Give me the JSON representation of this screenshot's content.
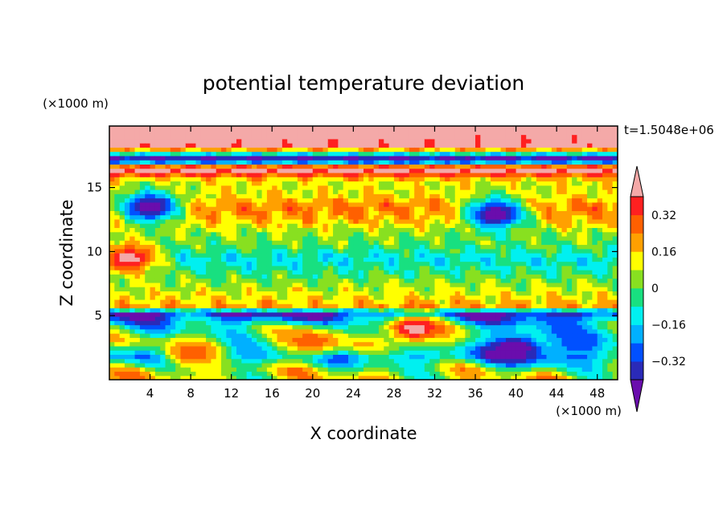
{
  "chart_data": {
    "type": "heatmap",
    "title": "potential temperature deviation",
    "xlabel": "X coordinate",
    "ylabel": "Z coordinate",
    "x_unit": "(×1000 m)",
    "y_unit": "(×1000 m)",
    "time_label": "t=1.5048e+06",
    "xlim": [
      0,
      50
    ],
    "ylim": [
      0,
      19.8
    ],
    "x_ticks": [
      4,
      8,
      12,
      16,
      20,
      24,
      28,
      32,
      36,
      40,
      44,
      48
    ],
    "y_ticks": [
      5,
      10,
      15
    ],
    "grid": false,
    "colorbar": {
      "placement": "right",
      "levels": [
        -0.4,
        -0.32,
        -0.24,
        -0.16,
        -0.08,
        0,
        0.08,
        0.16,
        0.24,
        0.32,
        0.4
      ],
      "labels": [
        "-0.32",
        "-0.16",
        "0",
        "0.16",
        "0.32"
      ],
      "label_values": [
        -0.32,
        -0.16,
        0,
        0.16,
        0.32
      ],
      "colors": [
        "#6a0dad",
        "#2a2ab8",
        "#0050ff",
        "#00b0ff",
        "#00f0f0",
        "#18e080",
        "#88e020",
        "#ffff00",
        "#ffa000",
        "#ff6000",
        "#ff2020",
        "#f4a9a8"
      ]
    },
    "field_levels": [
      {
        "z": 19.2,
        "value": 0.5
      },
      {
        "z": 18.3,
        "value": 0.45
      },
      {
        "z": 17.2,
        "value": -0.5
      },
      {
        "z": 16.5,
        "value": 0.5
      },
      {
        "z": 15.5,
        "value": 0.1
      },
      {
        "z": 14.5,
        "value": 0.12
      },
      {
        "z": 13.5,
        "value": 0.25
      },
      {
        "z": 12.5,
        "value": 0.18
      },
      {
        "z": 11.5,
        "value": 0.05
      },
      {
        "z": 10.5,
        "value": 0.0
      },
      {
        "z": 9.5,
        "value": -0.12
      },
      {
        "z": 8.5,
        "value": -0.05
      },
      {
        "z": 7.5,
        "value": 0.05
      },
      {
        "z": 6.5,
        "value": 0.12
      },
      {
        "z": 5.7,
        "value": 0.2
      },
      {
        "z": 5.2,
        "value": -0.4
      },
      {
        "z": 4.2,
        "value": -0.1
      },
      {
        "z": 3.0,
        "value": 0.0
      },
      {
        "z": 1.8,
        "value": -0.2
      },
      {
        "z": 0.8,
        "value": 0.05
      },
      {
        "z": 0.2,
        "value": 0.1
      }
    ],
    "features": [
      {
        "x": 4,
        "z": 13.5,
        "value": -0.5
      },
      {
        "x": 2,
        "z": 9.5,
        "value": 0.45
      },
      {
        "x": 30,
        "z": 4.0,
        "value": 0.45
      },
      {
        "x": 8,
        "z": 2.0,
        "value": 0.3
      },
      {
        "x": 40,
        "z": 2.5,
        "value": -0.5
      },
      {
        "x": 46,
        "z": 3.0,
        "value": -0.3
      },
      {
        "x": 38,
        "z": 13.0,
        "value": -0.5
      },
      {
        "x": 20,
        "z": 3.0,
        "value": 0.3
      }
    ]
  }
}
